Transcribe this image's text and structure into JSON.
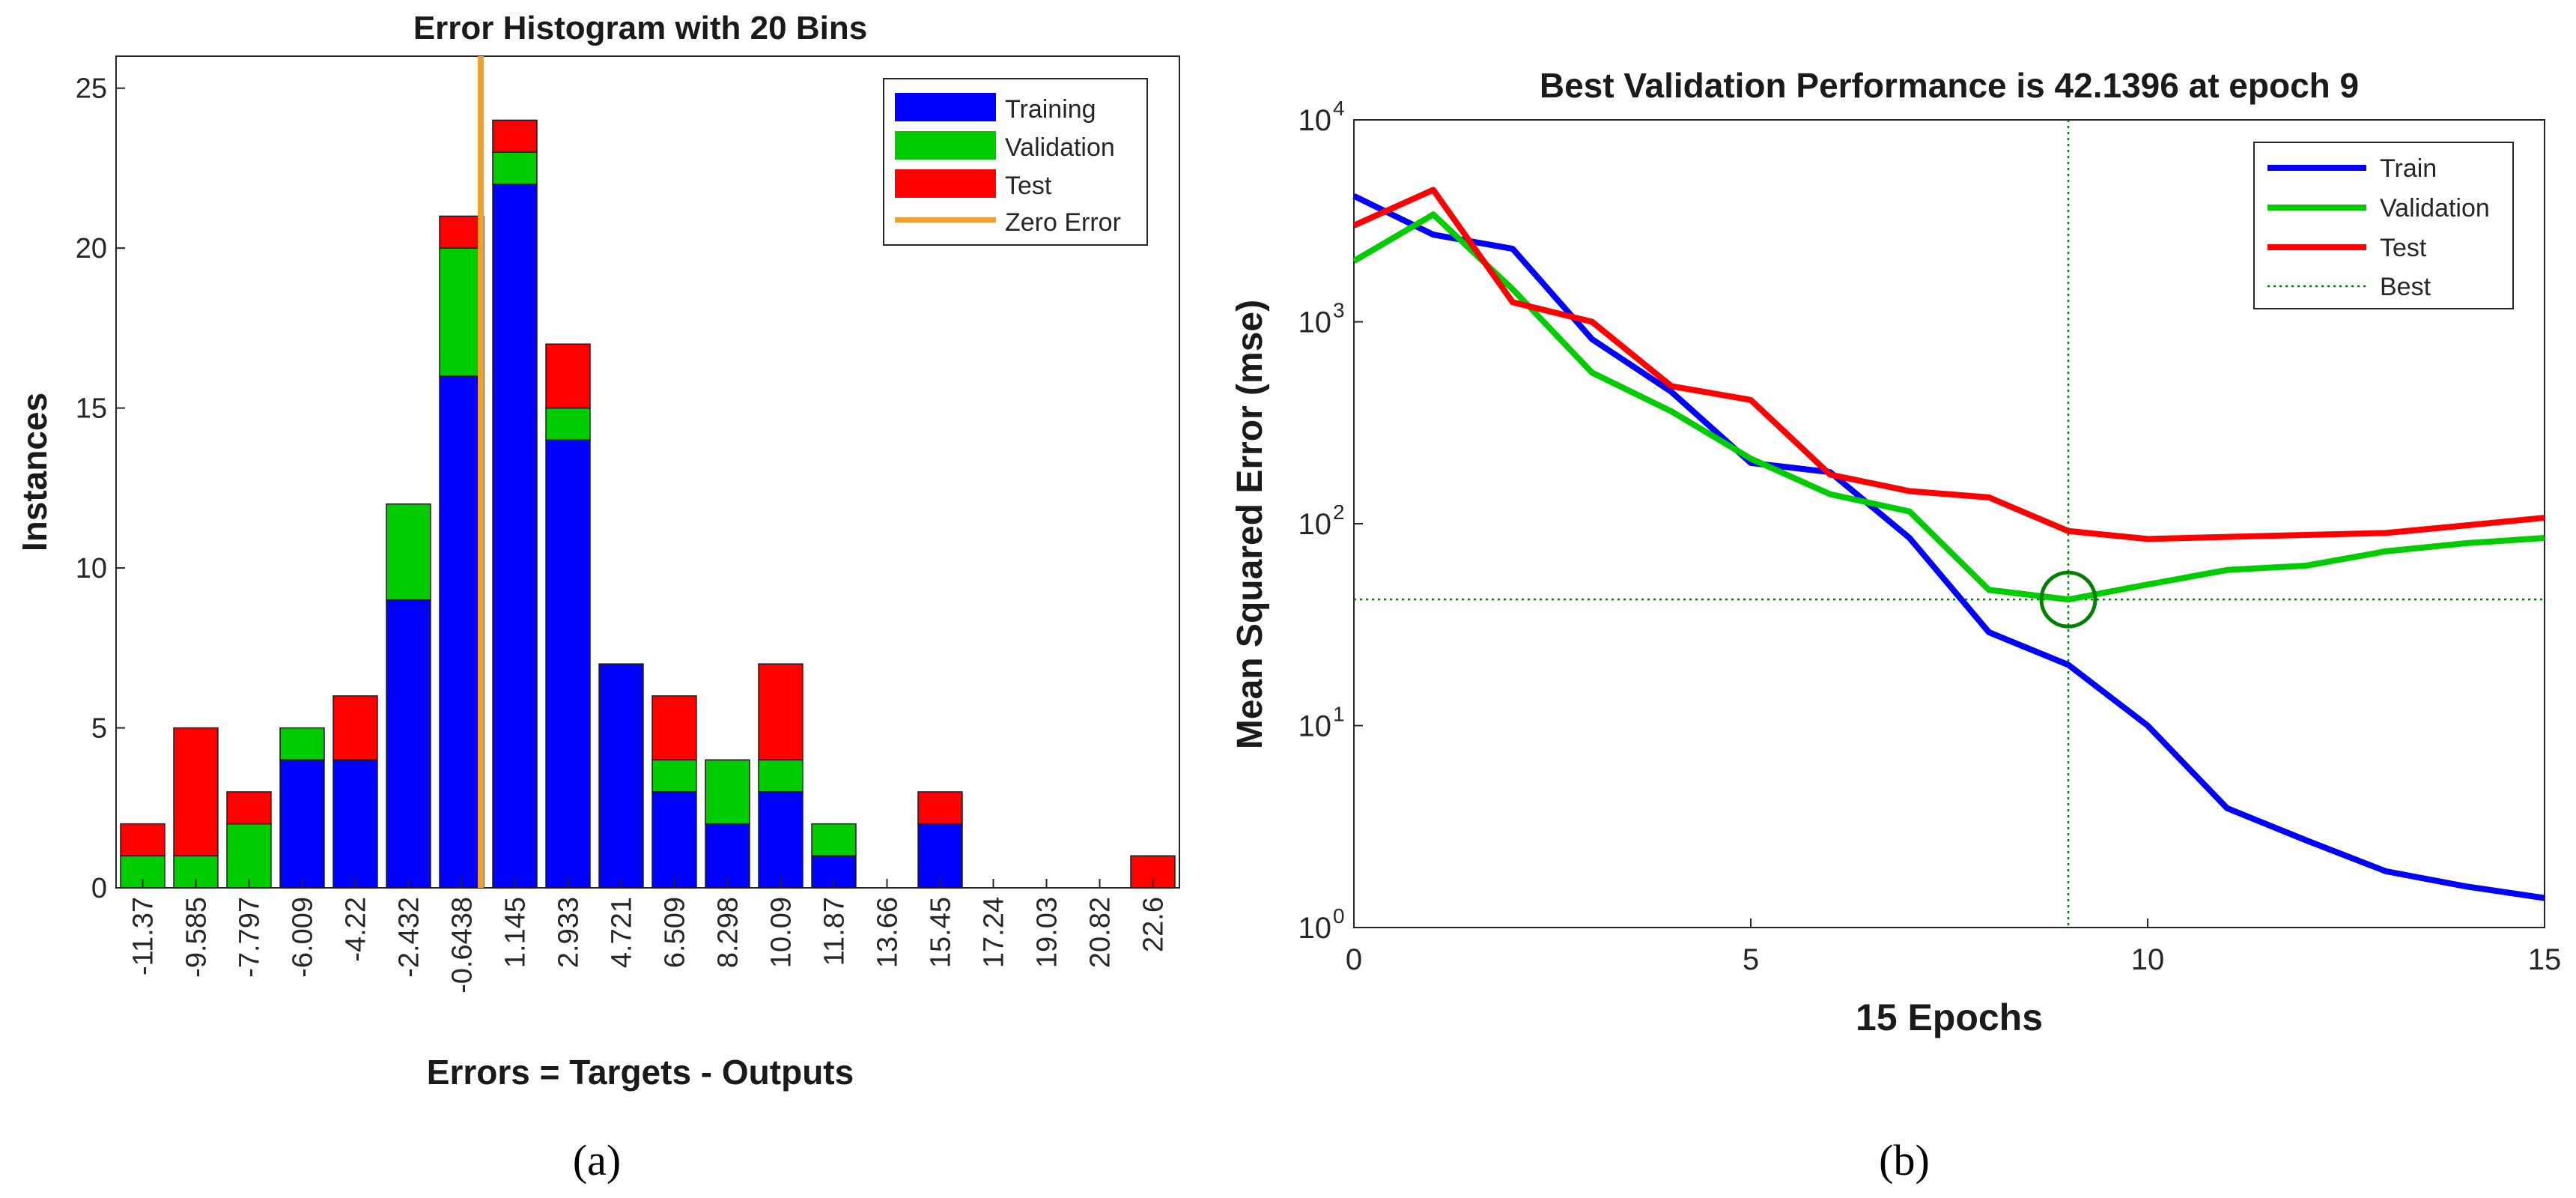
{
  "chart_data": [
    {
      "type": "bar",
      "stacked": true,
      "title": "Error Histogram with 20 Bins",
      "xlabel": "Errors = Targets - Outputs",
      "ylabel": "Instances",
      "ylim": [
        0,
        26
      ],
      "yticks": [
        "0",
        "5",
        "10",
        "15",
        "20",
        "25"
      ],
      "categories": [
        "-11.37",
        "-9.585",
        "-7.797",
        "-6.009",
        "-4.22",
        "-2.432",
        "-0.6438",
        "1.145",
        "2.933",
        "4.721",
        "6.509",
        "8.298",
        "10.09",
        "11.87",
        "13.66",
        "15.45",
        "17.24",
        "19.03",
        "20.82",
        "22.6"
      ],
      "series": [
        {
          "name": "Training",
          "color": "#0000ff",
          "values": [
            0,
            0,
            0,
            4,
            4,
            9,
            16,
            22,
            14,
            7,
            3,
            2,
            3,
            1,
            0,
            2,
            0,
            0,
            0,
            0
          ]
        },
        {
          "name": "Validation",
          "color": "#00cc00",
          "values": [
            1,
            1,
            2,
            1,
            0,
            3,
            4,
            1,
            1,
            0,
            1,
            2,
            1,
            1,
            0,
            0,
            0,
            0,
            0,
            0
          ]
        },
        {
          "name": "Test",
          "color": "#ff0000",
          "values": [
            1,
            4,
            1,
            0,
            2,
            0,
            1,
            1,
            2,
            0,
            2,
            0,
            3,
            0,
            0,
            1,
            0,
            0,
            0,
            1
          ]
        }
      ],
      "zero_error": {
        "name": "Zero Error",
        "color": "#f0a030",
        "x": 0
      },
      "legend": [
        "Training",
        "Validation",
        "Test",
        "Zero Error"
      ],
      "legend_position": "top-right",
      "caption": "(a)"
    },
    {
      "type": "line",
      "yscale": "log",
      "title": "Best Validation Performance is 42.1396 at epoch 9",
      "xlabel": "15 Epochs",
      "ylabel": "Mean Squared Error  (mse)",
      "xlim": [
        0,
        15
      ],
      "ylim_log10": [
        0,
        4
      ],
      "xticks": [
        "0",
        "5",
        "10",
        "15"
      ],
      "ytick_base": "10",
      "ytick_exponents": [
        "0",
        "1",
        "2",
        "3",
        "4"
      ],
      "x": [
        0,
        1,
        2,
        3,
        4,
        5,
        6,
        7,
        8,
        9,
        10,
        11,
        12,
        13,
        14,
        15
      ],
      "series": [
        {
          "name": "Train",
          "color": "#0000ff",
          "values": [
            4200,
            2700,
            2300,
            820,
            450,
            200,
            180,
            85,
            29,
            20,
            10,
            3.9,
            2.7,
            1.9,
            1.6,
            1.4
          ]
        },
        {
          "name": "Validation",
          "color": "#00cc00",
          "values": [
            2000,
            3400,
            1450,
            560,
            360,
            210,
            140,
            115,
            47,
            42.1396,
            50,
            59,
            62,
            73,
            80,
            85
          ]
        },
        {
          "name": "Test",
          "color": "#ff0000",
          "values": [
            3000,
            4500,
            1250,
            1000,
            480,
            410,
            175,
            145,
            135,
            92,
            84,
            86,
            88,
            90,
            98,
            107
          ]
        }
      ],
      "best": {
        "name": "Best",
        "color": "#008000",
        "epoch": 9,
        "value": 42.1396
      },
      "legend": [
        "Train",
        "Validation",
        "Test",
        "Best"
      ],
      "legend_position": "top-right",
      "caption": "(b)"
    }
  ]
}
